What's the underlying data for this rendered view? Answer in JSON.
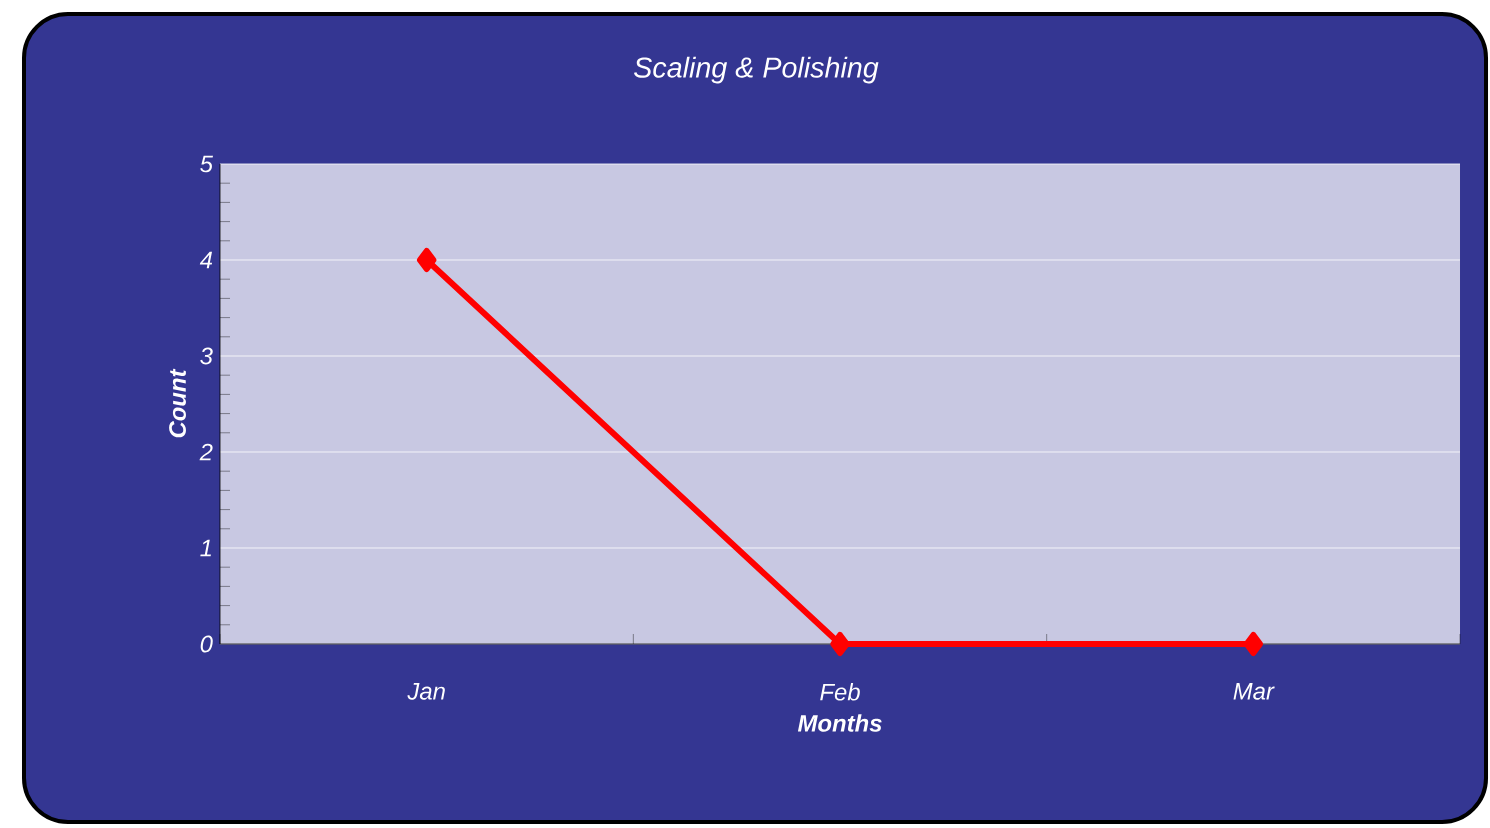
{
  "chart_data": {
    "type": "line",
    "title": "Scaling & Polishing",
    "xlabel": "Months",
    "ylabel": "Count",
    "categories": [
      "Jan",
      "Feb",
      "Mar"
    ],
    "series": [
      {
        "color": "#ff0000",
        "values": [
          4,
          0,
          0
        ]
      }
    ],
    "ylim": [
      0,
      5
    ],
    "yticks": [
      0,
      1,
      2,
      3,
      4,
      5
    ],
    "grid": "y",
    "marker": "diamond",
    "line_style": "solid"
  }
}
